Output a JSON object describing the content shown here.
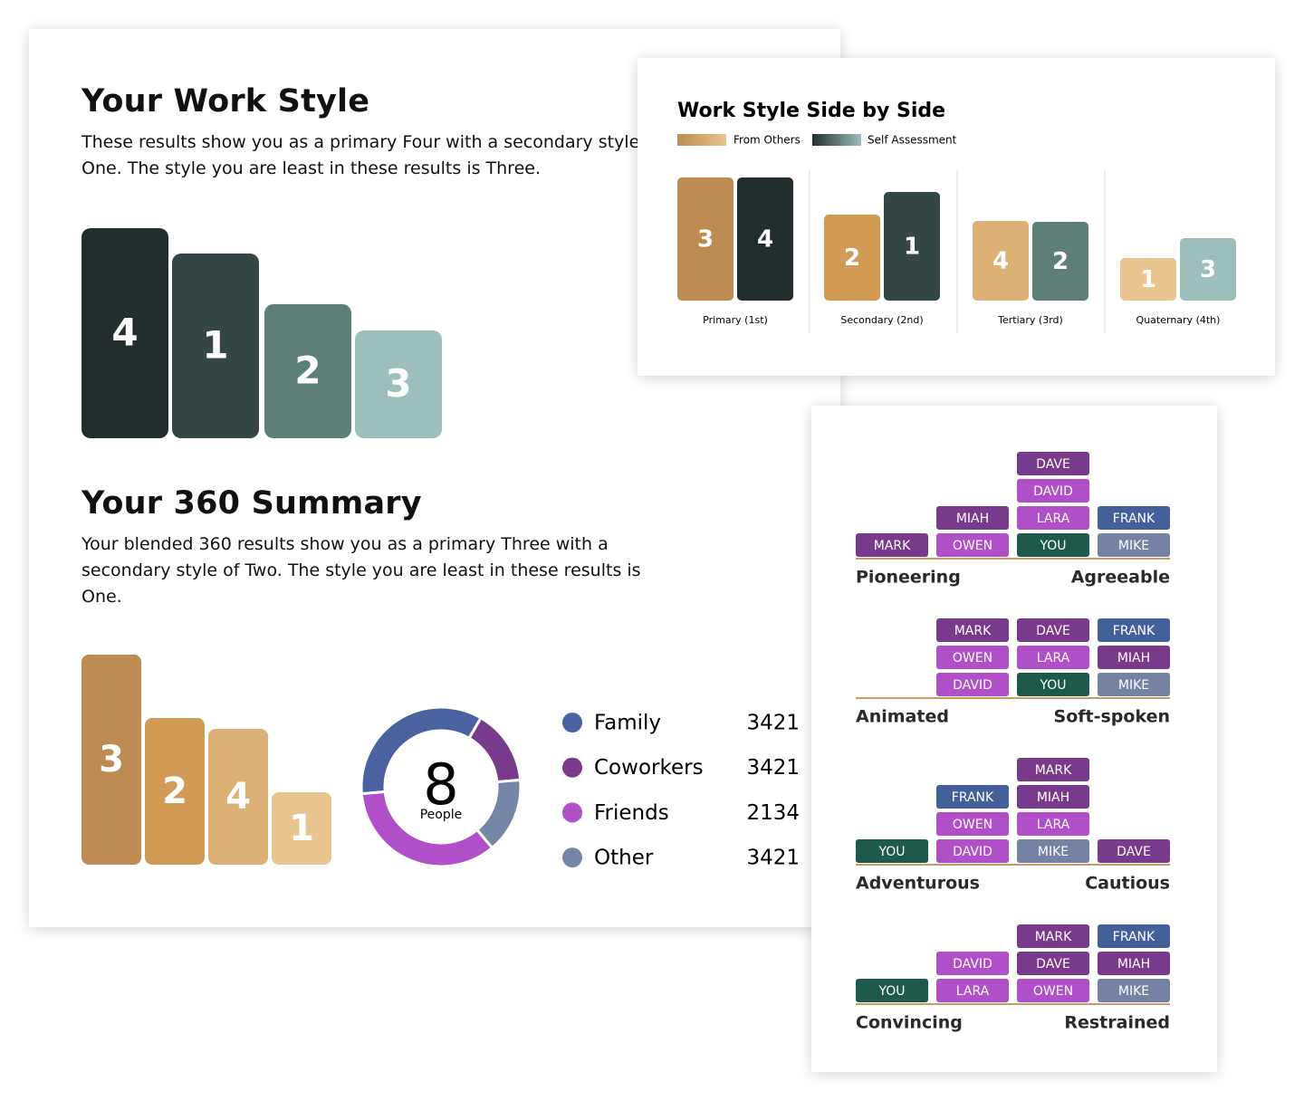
{
  "work_style": {
    "title": "Your Work Style",
    "text": "These results show you as a primary Four with a secondary style of One. The style you are least in these results is Three.",
    "bars": [
      4,
      1,
      2,
      3
    ]
  },
  "summary": {
    "title": "Your 360 Summary",
    "text": "Your blended 360 results show you as a primary Three with a secondary style of Two. The style you are least in these results is One.",
    "bars": [
      3,
      2,
      4,
      1
    ],
    "donut": {
      "value": 8,
      "label": "People"
    },
    "legend": [
      {
        "name": "Family",
        "color": "#4a63a0",
        "value": 3421
      },
      {
        "name": "Coworkers",
        "color": "#7a3a8c",
        "value": 3421
      },
      {
        "name": "Friends",
        "color": "#b04fc7",
        "value": 2134
      },
      {
        "name": "Other",
        "color": "#7586a6",
        "value": 3421
      }
    ]
  },
  "side_by_side": {
    "title": "Work Style Side by Side",
    "legend": [
      "From Others",
      "Self Assessment"
    ],
    "groups": [
      {
        "label": "Primary (1st)",
        "others": 3,
        "self": 4
      },
      {
        "label": "Secondary (2nd)",
        "others": 2,
        "self": 1
      },
      {
        "label": "Tertiary (3rd)",
        "others": 4,
        "self": 2
      },
      {
        "label": "Quaternary (4th)",
        "others": 1,
        "self": 3
      }
    ]
  },
  "scales": {
    "chip_colors": {
      "MARK": "#7a3a8c",
      "DAVE": "#7a3a8c",
      "MIAH": "#7a3a8c",
      "DAVID": "#b04fc7",
      "LARA": "#b04fc7",
      "OWEN": "#b04fc7",
      "YOU": "#1e5a4c",
      "FRANK": "#44609a",
      "MIKE": "#7483a3"
    },
    "items": [
      {
        "left": "Pioneering",
        "right": "Agreeable",
        "columns": [
          [
            "MARK"
          ],
          [
            "OWEN",
            "MIAH"
          ],
          [
            "YOU",
            "LARA",
            "DAVID",
            "DAVE"
          ],
          [
            "MIKE",
            "FRANK"
          ]
        ]
      },
      {
        "left": "Animated",
        "right": "Soft-spoken",
        "columns": [
          [],
          [
            "DAVID",
            "OWEN",
            "MARK"
          ],
          [
            "YOU",
            "LARA",
            "DAVE"
          ],
          [
            "MIKE",
            "MIAH",
            "FRANK"
          ]
        ]
      },
      {
        "left": "Adventurous",
        "right": "Cautious",
        "columns": [
          [
            "YOU"
          ],
          [
            "DAVID",
            "OWEN",
            "FRANK"
          ],
          [
            "MIKE",
            "LARA",
            "MIAH",
            "MARK"
          ],
          [
            "DAVE"
          ]
        ]
      },
      {
        "left": "Convincing",
        "right": "Restrained",
        "columns": [
          [
            "YOU"
          ],
          [
            "LARA",
            "DAVID"
          ],
          [
            "OWEN",
            "DAVE",
            "MARK"
          ],
          [
            "MIKE",
            "MIAH",
            "FRANK"
          ]
        ]
      }
    ]
  }
}
